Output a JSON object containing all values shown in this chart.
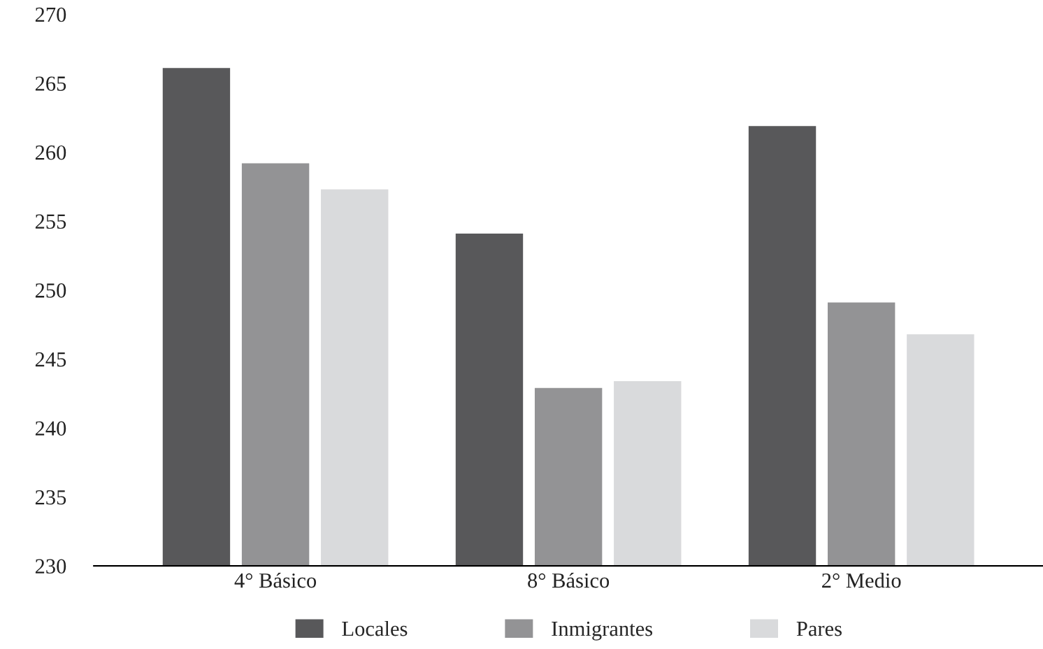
{
  "chart_data": {
    "type": "bar",
    "categories": [
      "4° Básico",
      "8° Básico",
      "2° Medio"
    ],
    "series": [
      {
        "name": "Locales",
        "color": "#58585a",
        "values": [
          266.1,
          254.1,
          261.9
        ]
      },
      {
        "name": "Inmigrantes",
        "color": "#939395",
        "values": [
          259.2,
          242.9,
          249.1
        ]
      },
      {
        "name": "Pares",
        "color": "#d9dadc",
        "values": [
          257.3,
          243.4,
          246.8
        ]
      }
    ],
    "ylim": [
      230,
      270
    ],
    "yticks": [
      230,
      235,
      240,
      245,
      250,
      255,
      260,
      265,
      270
    ],
    "grid": false,
    "legend": "bottom"
  }
}
